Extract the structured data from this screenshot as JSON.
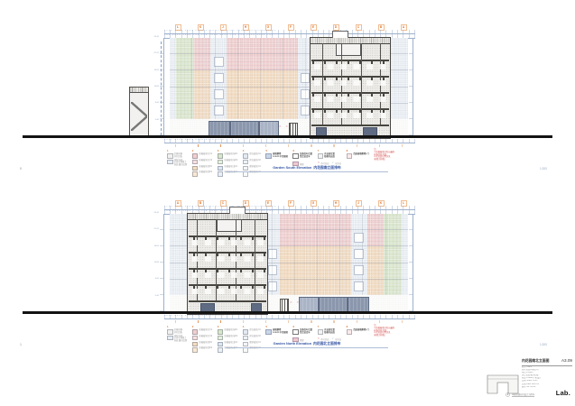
{
  "sheet": {
    "background": "#ffffff"
  },
  "colors": {
    "grid_bubble_orange": "#e0762e",
    "caption_blue": "#3555a4",
    "note_red": "#d24a4a",
    "dimension_gray_blue": "#93a5c2",
    "panel_green": "#dbe7cd",
    "panel_pink": "#f0d0d0",
    "panel_orange": "#f3dcc2",
    "panel_blue_fleck": "#ecf1f6",
    "storefront_dark_blue": "#8b97ad",
    "ground_line_black": "#131313"
  },
  "marks": {
    "x_pair": "✕ ✕"
  },
  "drawings": [
    {
      "number": "0",
      "caption_en": "Garden South Elevation",
      "caption_zh": "内花园南立面排布",
      "scale": "1:200",
      "grid_letters": [
        "L",
        "K",
        "J",
        "H",
        "G",
        "F",
        "E",
        "D",
        "C",
        "B",
        "A"
      ],
      "dims_top": "2250 4200 4200 4200 4200 4200 4200 4200 4200 4200 2250",
      "dims_mid": "750 3450 3450 750 750 3450 3450 750 750 3450 3450 750",
      "dims_bottom": "8400 8400 8400 8400 8400 8400",
      "levels": [
        "26.40",
        "22.20",
        "18.00",
        "13.80",
        "9.60",
        "5.40",
        "±0.00"
      ]
    },
    {
      "number": "1",
      "caption_en": "Garden North Elevation",
      "caption_zh": "内花园北立面排布",
      "scale": "1:200",
      "grid_letters": [
        "A",
        "B",
        "C",
        "D",
        "E",
        "F",
        "G",
        "H",
        "J",
        "K",
        "L"
      ],
      "dims_top": "2250 4200 4200 4200 4200 4200 4200 4200 4200 4200 2250",
      "dims_mid": "750 3450 3450 750 750 3450 3450 750 750 3450 3450 750",
      "dims_bottom": "8400 8400 8400 8400 8400 8400",
      "levels": [
        "26.40",
        "22.20",
        "18.00",
        "13.80",
        "9.60",
        "5.40",
        "±0.00"
      ]
    }
  ],
  "legend": {
    "groups": [
      {
        "key": "1",
        "items": [
          {
            "swatch": "#f1f1ef",
            "lines": [
              "金属格栅",
              "穿孔铝板"
            ]
          },
          {
            "swatch": "#e9eef5",
            "lines": [
              "GRC挂板",
              "仿清水混凝土",
              "饰面 细石纹理"
            ]
          }
        ]
      },
      {
        "key": "2",
        "items": [
          {
            "swatch": "#f0cfcf",
            "lines": [
              "彩釉玻璃 红01"
            ]
          },
          {
            "swatch": "#f6dfdf",
            "lines": [
              "彩釉玻璃 红02"
            ]
          },
          {
            "swatch": "#f3dcc2",
            "lines": [
              "彩釉玻璃 橙01"
            ]
          },
          {
            "swatch": "#f8e8d4",
            "lines": [
              "彩釉玻璃 橙02"
            ]
          }
        ]
      },
      {
        "key": "3",
        "items": [
          {
            "swatch": "#d9e7cd",
            "lines": [
              "彩釉玻璃 绿01"
            ]
          },
          {
            "swatch": "#e6f0dc",
            "lines": [
              "彩釉玻璃 绿02"
            ]
          },
          {
            "swatch": "#dce7f0",
            "lines": [
              "彩釉玻璃 蓝01"
            ]
          },
          {
            "swatch": "#eaf0f6",
            "lines": [
              "彩釉玻璃 蓝02"
            ]
          }
        ]
      },
      {
        "key": "4",
        "items": [
          {
            "swatch": "#e3eaf2",
            "lines": [
              "超白玻璃 01"
            ]
          },
          {
            "swatch": "#edf2f7",
            "lines": [
              "超白玻璃 02"
            ]
          },
          {
            "swatch": "#f3f5f8",
            "lines": [
              "磨砂玻璃 01"
            ]
          },
          {
            "swatch": "#f8fafb",
            "lines": [
              "磨砂玻璃 02"
            ]
          }
        ]
      },
      {
        "key": "5",
        "items": [
          {
            "swatch": "#c9d6e8",
            "bold": true,
            "lines": [
              "玻璃幕墙",
              "Low-E 中空玻璃"
            ]
          }
        ]
      },
      {
        "key": "6",
        "items": [
          {
            "swatch": "#ffffff",
            "border": true,
            "bold": true,
            "lines": [
              "设备百叶位置",
              "铝合金百叶"
            ]
          }
        ],
        "symbols": [
          {
            "swatch": "#f2c7d2",
            "label": "预留"
          }
        ]
      },
      {
        "key": "7",
        "items": [
          {
            "swatch": "#f4f4f2",
            "bold": true,
            "lines": [
              "开启扇位置",
              "隐框开启扇"
            ]
          }
        ],
        "symbols": [
          {
            "glyph": "✕",
            "color": "#e08fa0",
            "label": "不可开启"
          },
          {
            "glyph": "✓",
            "color": "#7fbfae",
            "label": "可开启"
          }
        ]
      },
      {
        "key": "8",
        "items": [
          {
            "swatch": "#fdeaea",
            "bold": true,
            "lines": [
              "首层玻璃幕墙+门"
            ]
          }
        ]
      }
    ],
    "note_red": [
      "注:",
      "1.彩釉玻璃分色以最终",
      "  样板封样为准;",
      "2.开启扇位置详见",
      "  幕墙大样图。"
    ]
  },
  "title_block": {
    "sheet_title": "内花园南北立面图",
    "sheet_number": "A3.09",
    "info_lines": [
      "业主 Client",
      "西岸置业有限公司",
      "项目 Project",
      "滨江实验室办公楼",
      "阶段 Phase  扩初设计",
      "比例 Scale  1:200",
      "日期 Date  2023.06",
      "图号 No.  A3.09"
    ],
    "footer_note": "本图纸版权归设计方所有",
    "logo": "Lab."
  }
}
